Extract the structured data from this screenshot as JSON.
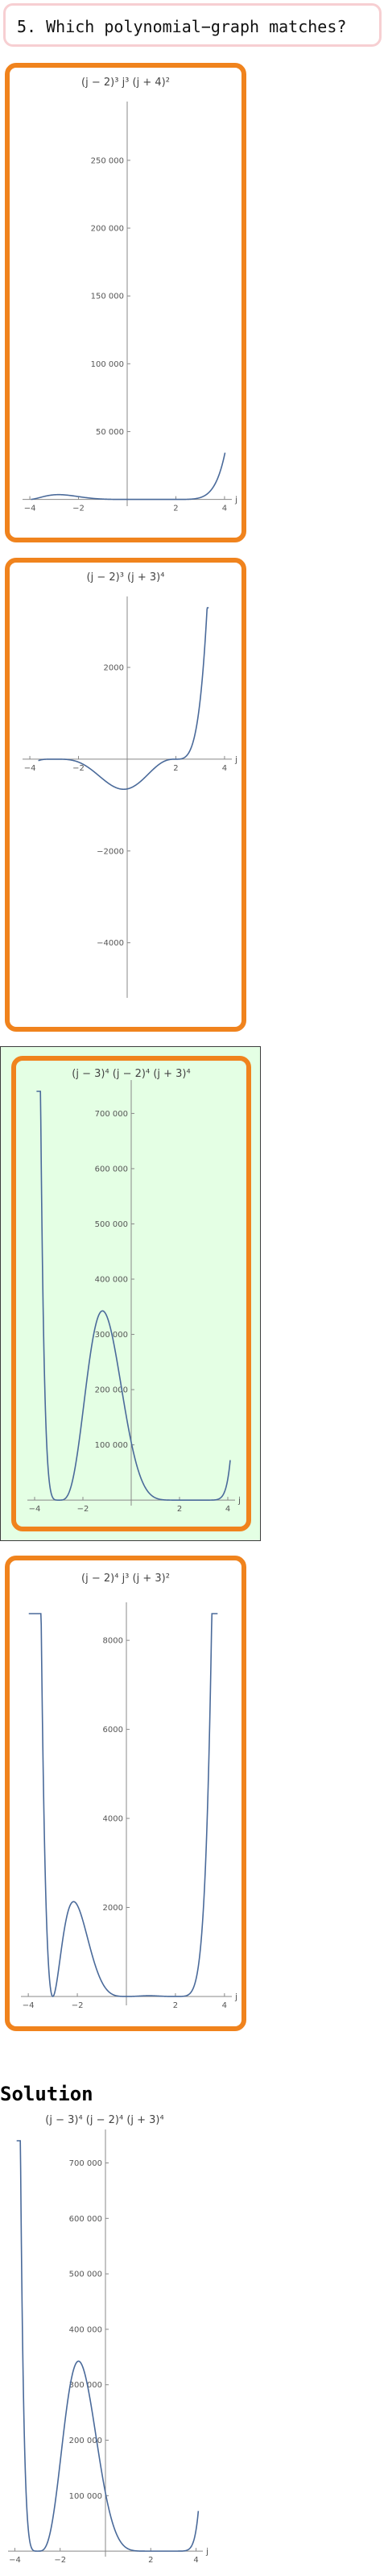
{
  "question": {
    "text": "5. Which polynomial−graph matches?"
  },
  "solution": {
    "title": "Solution"
  },
  "colors": {
    "accent": "#f0831d",
    "selected_bg": "#e4ffe4",
    "curve": "#4a6a9a"
  },
  "chart_data": [
    {
      "type": "line",
      "id": "option-1",
      "title": "(j − 2)³ j³ (j + 4)²",
      "xlabel": "j",
      "xlim": [
        -4.3,
        4.3
      ],
      "ylim": [
        -5000,
        285000
      ],
      "xticks": [
        -4,
        -2,
        2,
        4
      ],
      "xtick_labels": [
        "−4",
        "−2",
        "2",
        "4"
      ],
      "yticks": [
        50000,
        100000,
        150000,
        200000,
        250000
      ],
      "ytick_labels": [
        "50 000",
        "100 000",
        "150 000",
        "200 000",
        "250 000"
      ],
      "roots": [
        {
          "r": 2,
          "m": 3
        },
        {
          "r": 0,
          "m": 3
        },
        {
          "r": -4,
          "m": 2
        }
      ],
      "sign": -1,
      "abs": true,
      "x_range": [
        -3.95,
        4.02
      ]
    },
    {
      "type": "line",
      "id": "option-2",
      "title": "(j − 2)³ (j + 3)⁴",
      "xlabel": "j",
      "xlim": [
        -4.3,
        4.3
      ],
      "ylim": [
        -5200,
        3300
      ],
      "xticks": [
        -4,
        -2,
        2,
        4
      ],
      "xtick_labels": [
        "−4",
        "−2",
        "2",
        "4"
      ],
      "yticks": [
        2000,
        -2000,
        -4000
      ],
      "ytick_labels": [
        "2000",
        "−2000",
        "−4000"
      ],
      "roots": [
        {
          "r": 2,
          "m": 3
        },
        {
          "r": -3,
          "m": 4
        }
      ],
      "sign": 1,
      "abs": false,
      "x_range": [
        -3.65,
        3.35
      ]
    },
    {
      "type": "line",
      "id": "option-3",
      "title": "(j − 3)⁴ (j − 2)⁴ (j + 3)⁴",
      "xlabel": "j",
      "xlim": [
        -4.3,
        4.3
      ],
      "ylim": [
        -10000,
        740000
      ],
      "xticks": [
        -4,
        -2,
        2,
        4
      ],
      "xtick_labels": [
        "−4",
        "−2",
        "2",
        "4"
      ],
      "yticks": [
        100000,
        200000,
        300000,
        400000,
        500000,
        600000,
        700000
      ],
      "ytick_labels": [
        "100 000",
        "200 000",
        "300 000",
        "400 000",
        "500 000",
        "600 000",
        "700 000"
      ],
      "roots": [
        {
          "r": 3,
          "m": 4
        },
        {
          "r": 2,
          "m": 4
        },
        {
          "r": -3,
          "m": 4
        }
      ],
      "sign": 1,
      "abs": false,
      "x_range": [
        -3.92,
        4.1
      ]
    },
    {
      "type": "line",
      "id": "option-4",
      "title": "(j − 2)⁴ j³ (j + 3)²",
      "xlabel": "j",
      "xlim": [
        -4.3,
        4.3
      ],
      "ylim": [
        -200,
        8600
      ],
      "xticks": [
        -4,
        -2,
        2,
        4
      ],
      "xtick_labels": [
        "−4",
        "−2",
        "2",
        "4"
      ],
      "yticks": [
        2000,
        4000,
        6000,
        8000
      ],
      "ytick_labels": [
        "2000",
        "4000",
        "6000",
        "8000"
      ],
      "roots": [
        {
          "r": 2,
          "m": 4
        },
        {
          "r": 0,
          "m": 3
        },
        {
          "r": -3,
          "m": 2
        }
      ],
      "sign": 1,
      "abs": true,
      "x_range": [
        -3.98,
        3.72
      ]
    },
    {
      "type": "line",
      "id": "solution",
      "title": "(j − 3)⁴ (j − 2)⁴ (j + 3)⁴",
      "xlabel": "j",
      "xlim": [
        -4.3,
        4.3
      ],
      "ylim": [
        -10000,
        740000
      ],
      "xticks": [
        -4,
        -2,
        2,
        4
      ],
      "xtick_labels": [
        "−4",
        "−2",
        "2",
        "4"
      ],
      "yticks": [
        100000,
        200000,
        300000,
        400000,
        500000,
        600000,
        700000
      ],
      "ytick_labels": [
        "100 000",
        "200 000",
        "300 000",
        "400 000",
        "500 000",
        "600 000",
        "700 000"
      ],
      "roots": [
        {
          "r": 3,
          "m": 4
        },
        {
          "r": 2,
          "m": 4
        },
        {
          "r": -3,
          "m": 4
        }
      ],
      "sign": 1,
      "abs": false,
      "x_range": [
        -3.92,
        4.1
      ]
    }
  ]
}
